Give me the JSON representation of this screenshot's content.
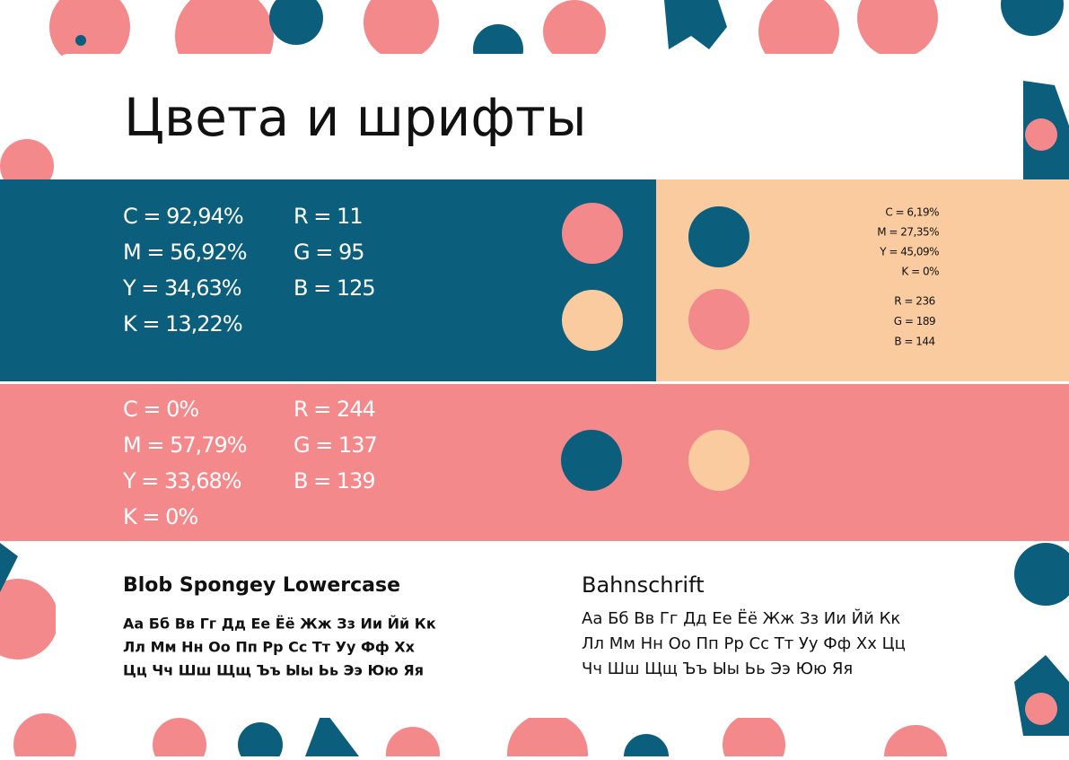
{
  "header": {
    "title": "Цвета и шрифты"
  },
  "palettes": [
    {
      "cmyk": [
        "C = 92,94%",
        "M = 56,92%",
        "Y = 34,63%",
        "K = 13,22%"
      ],
      "rgb": [
        "R = 11",
        "G = 95",
        "B = 125"
      ]
    },
    {
      "cmyk": [
        "C = 6,19%",
        "M = 27,35%",
        "Y = 45,09%",
        "K = 0%"
      ],
      "rgb": [
        "R = 236",
        "G = 189",
        "B = 144"
      ]
    },
    {
      "cmyk": [
        "C = 0%",
        "M = 57,79%",
        "Y = 33,68%",
        "K = 0%"
      ],
      "rgb": [
        "R = 244",
        "G = 137",
        "B = 139"
      ]
    }
  ],
  "fonts": [
    {
      "name": "Blob Spongey Lowercase",
      "lines": [
        "Аа Бб Вв Гг Дд Ее Ёё Жж Зз Ии Йй Кк",
        "Лл Мм Нн Оо Пп Рр Сс Тт Уу Фф Хх",
        "Цц Чч Шш Щщ Ъъ Ыы Ьь Ээ Юю Яя"
      ]
    },
    {
      "name": "Bahnschrift",
      "lines": [
        "Аа Бб Вв Гг Дд Ее Ёё Жж Зз Ии Йй Кк",
        "Лл Мм Нн Оо Пп Рр Сс Тт Уу Фф Хх Цц",
        "Чч Шш Щщ Ъъ Ыы Ьь Ээ Юю Яя"
      ]
    }
  ]
}
